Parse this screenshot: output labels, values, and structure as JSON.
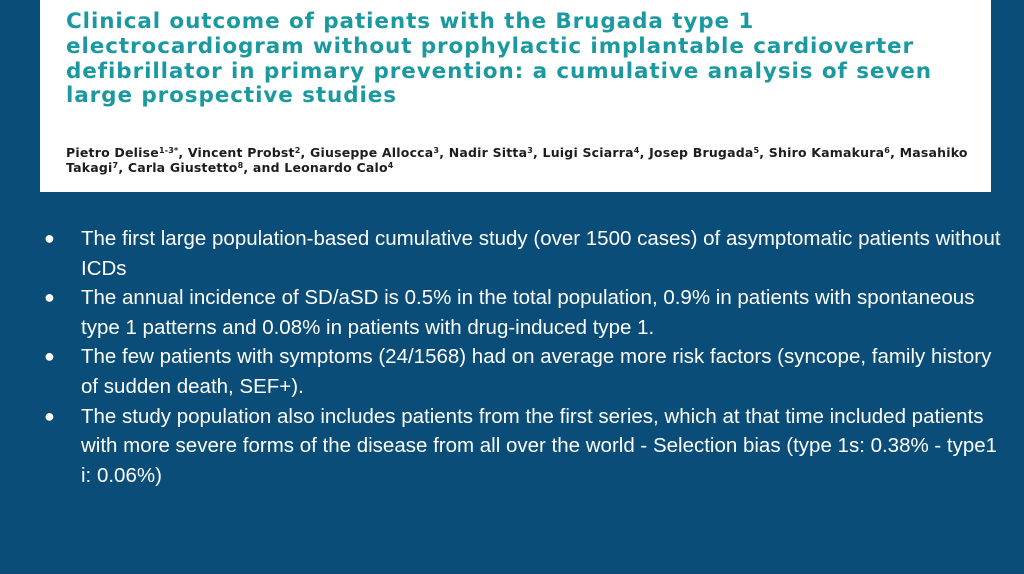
{
  "paper": {
    "title": "Clinical outcome of patients with the Brugada type 1 electrocardiogram without prophylactic implantable cardioverter defibrillator in primary prevention: a cumulative analysis of seven large prospective studies",
    "authors": [
      {
        "name": "Pietro Delise",
        "sup": "1-3*"
      },
      {
        "name": "Vincent Probst",
        "sup": "2"
      },
      {
        "name": "Giuseppe Allocca",
        "sup": "3"
      },
      {
        "name": "Nadir Sitta",
        "sup": "3"
      },
      {
        "name": "Luigi Sciarra",
        "sup": "4"
      },
      {
        "name": "Josep Brugada",
        "sup": "5"
      },
      {
        "name": "Shiro Kamakura",
        "sup": "6"
      },
      {
        "name": "Masahiko Takagi",
        "sup": "7"
      },
      {
        "name": "Carla Giustetto",
        "sup": "8"
      },
      {
        "name": "Leonardo Calo",
        "sup": "4"
      }
    ],
    "author_separator": ", ",
    "author_conjunction": ", and "
  },
  "bullet_symbol": "●",
  "bullets": [
    "The first large population-based cumulative study (over 1500 cases) of asymptomatic patients without ICDs",
    "The annual incidence of SD/aSD is 0.5% in the total population, 0.9% in patients with spontaneous type 1 patterns and 0.08% in patients with drug-induced type 1.",
    "The few patients with symptoms (24/1568) had on average more risk factors (syncope, family history of sudden death, SEF+).",
    "The study population also includes patients from the first series, which at that time included patients with more severe forms of the disease from all over the world - Selection bias (type 1s: 0.38% - type1 i: 0.06%)"
  ]
}
